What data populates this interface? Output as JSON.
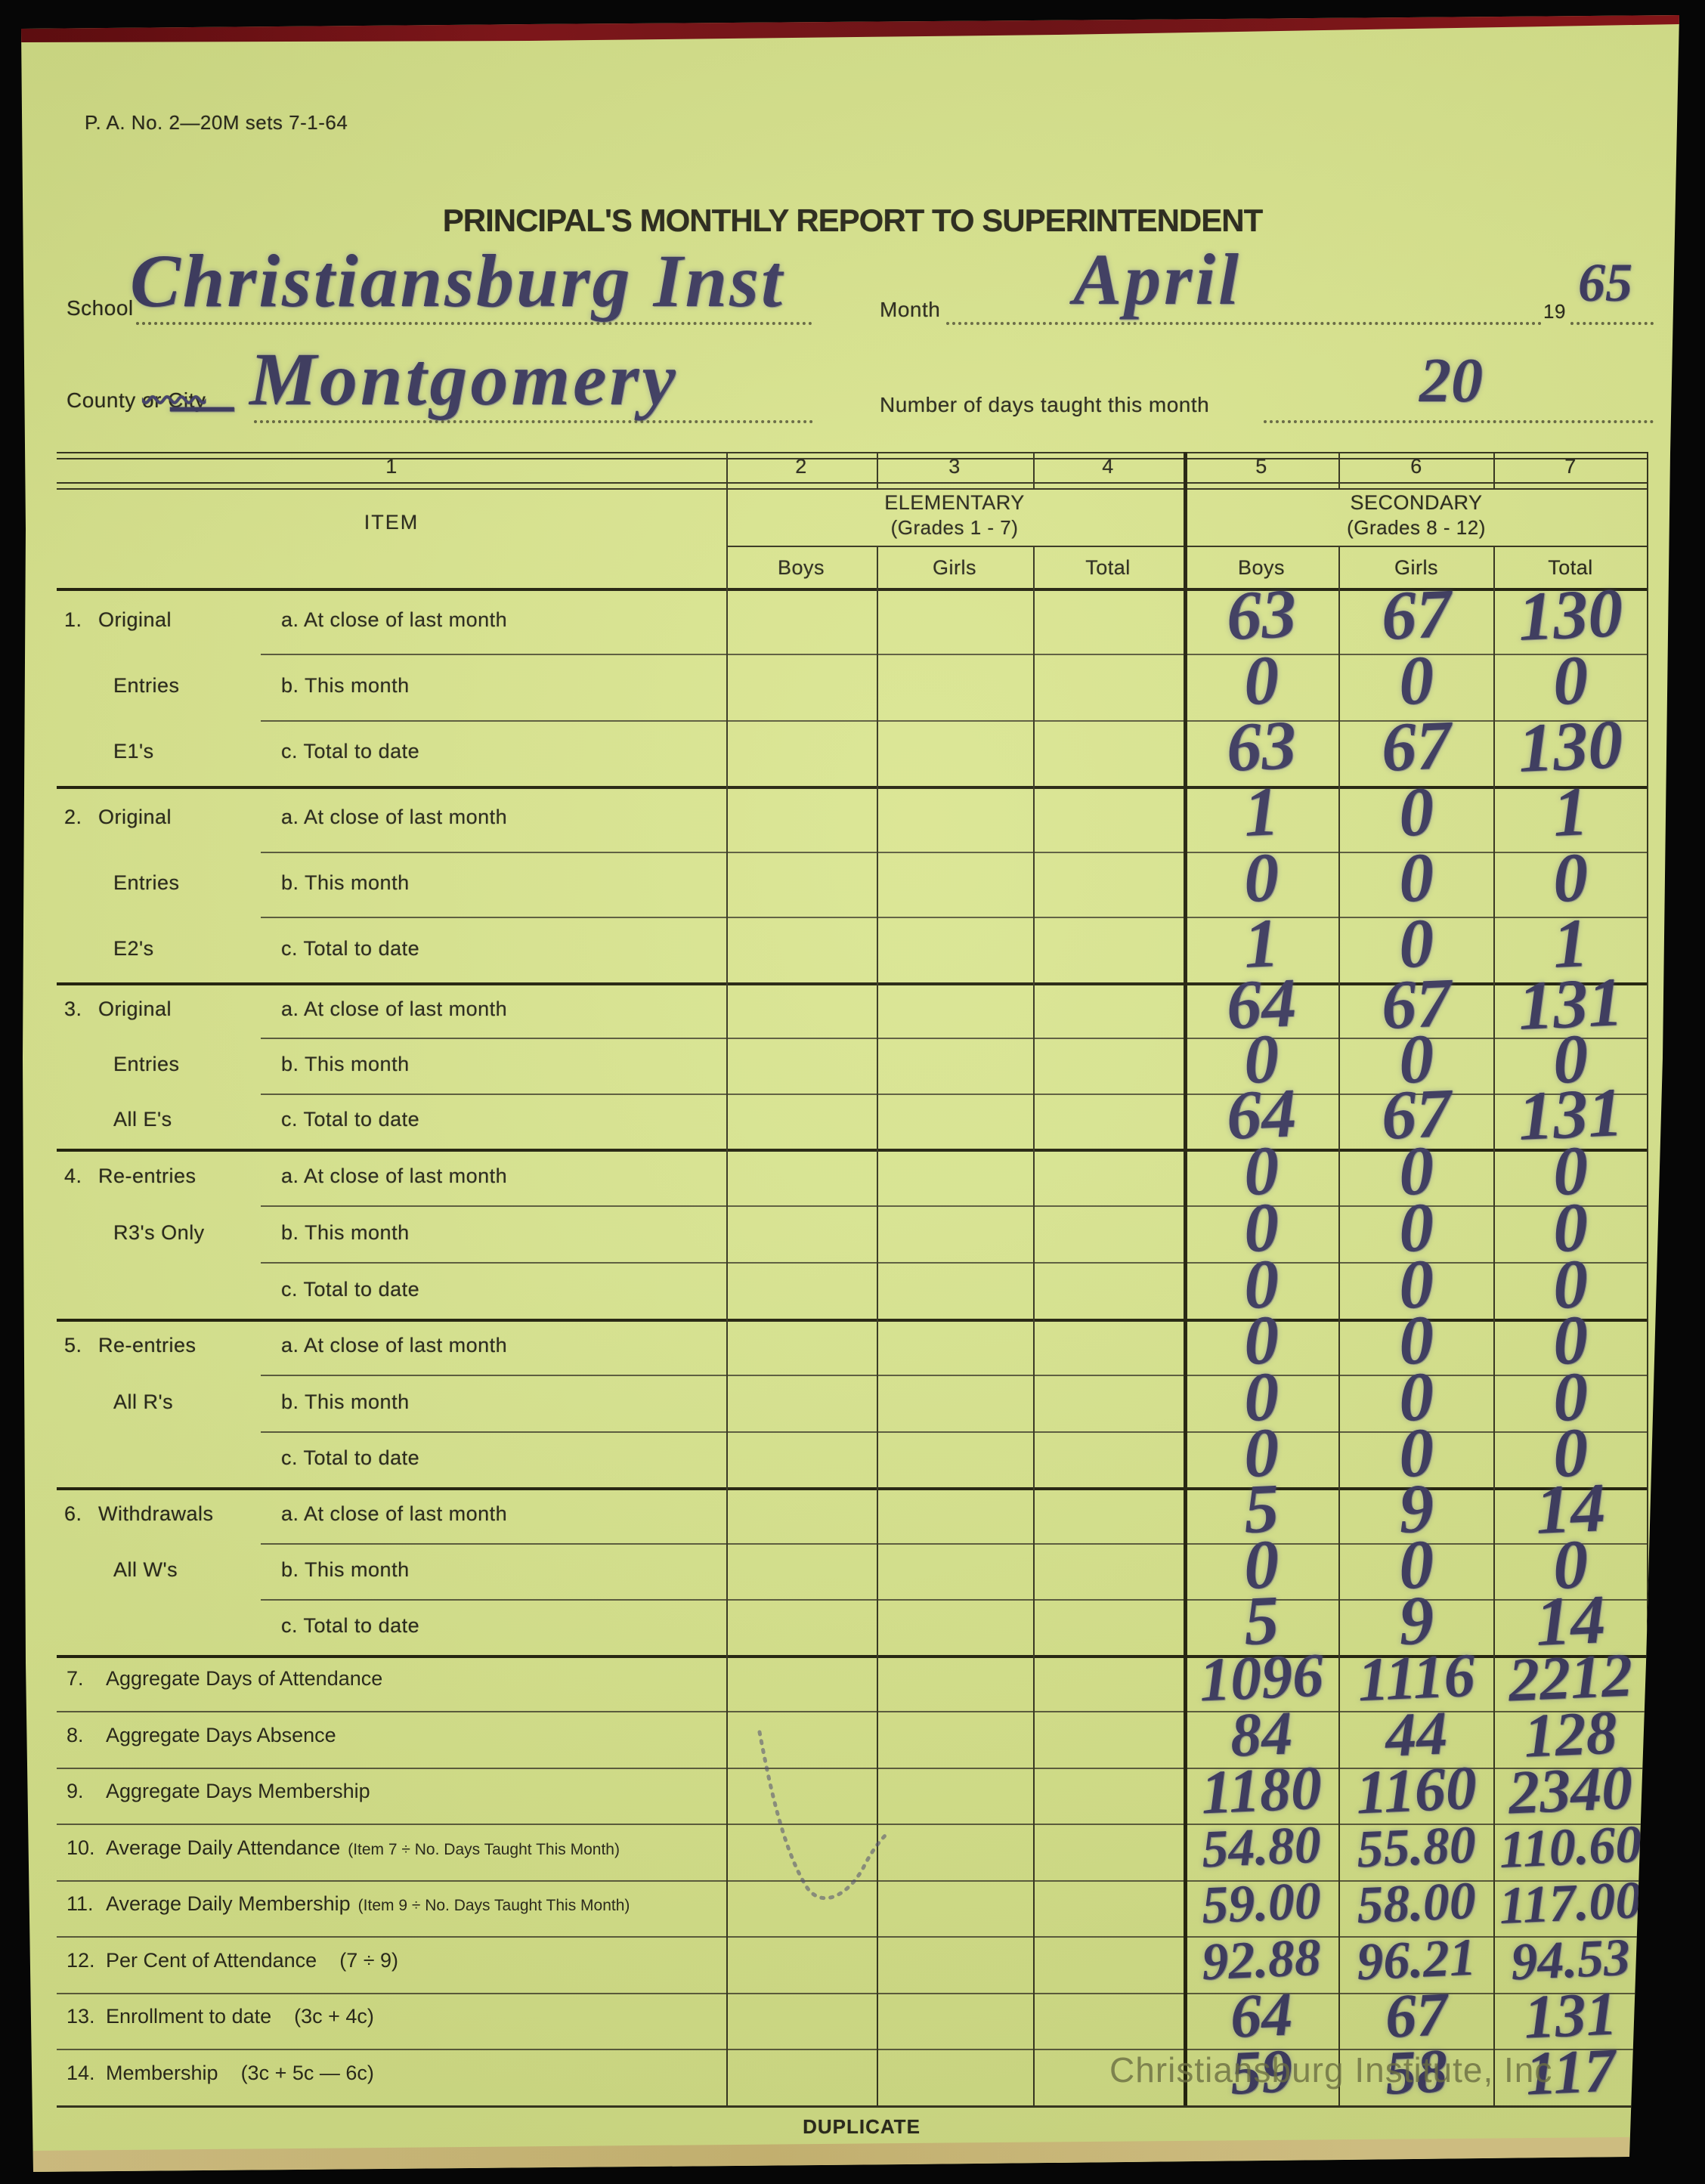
{
  "meta": {
    "form_number": "P. A. No. 2—20M sets 7-1-64",
    "title": "PRINCIPAL'S MONTHLY REPORT TO SUPERINTENDENT",
    "duplicate_label": "DUPLICATE",
    "watermark": "Christiansburg Institute, Inc"
  },
  "fields": {
    "school_label": "School",
    "school_value": "Christiansburg Inst",
    "county_label": "County",
    "county_label_struck": "or City",
    "county_dash": "—",
    "county_value": "Montgomery",
    "month_label": "Month",
    "month_value": "April",
    "year_prefix": "19",
    "year_value": "65",
    "days_label": "Number of days taught this month",
    "days_value": "20"
  },
  "table": {
    "column_numbers": [
      "1",
      "2",
      "3",
      "4",
      "5",
      "6",
      "7"
    ],
    "item_header": "ITEM",
    "elementary_header": "ELEMENTARY",
    "elementary_sub": "(Grades 1 - 7)",
    "secondary_header": "SECONDARY",
    "secondary_sub": "(Grades 8 - 12)",
    "sub_headers": [
      "Boys",
      "Girls",
      "Total"
    ],
    "row_labels": [
      "a. At close of last month",
      "b. This month",
      "c. Total to date"
    ],
    "groups": [
      {
        "num": "1.",
        "side": [
          "Original",
          "Entries",
          "E1's"
        ],
        "values": [
          [
            "63",
            "67",
            "130"
          ],
          [
            "0",
            "0",
            "0"
          ],
          [
            "63",
            "67",
            "130"
          ]
        ]
      },
      {
        "num": "2.",
        "side": [
          "Original",
          "Entries",
          "E2's"
        ],
        "values": [
          [
            "1",
            "0",
            "1"
          ],
          [
            "0",
            "0",
            "0"
          ],
          [
            "1",
            "0",
            "1"
          ]
        ]
      },
      {
        "num": "3.",
        "side": [
          "Original",
          "Entries",
          "All E's"
        ],
        "values": [
          [
            "64",
            "67",
            "131"
          ],
          [
            "0",
            "0",
            "0"
          ],
          [
            "64",
            "67",
            "131"
          ]
        ]
      },
      {
        "num": "4.",
        "side": [
          "Re-entries",
          "R3's Only",
          ""
        ],
        "values": [
          [
            "0",
            "0",
            "0"
          ],
          [
            "0",
            "0",
            "0"
          ],
          [
            "0",
            "0",
            "0"
          ]
        ]
      },
      {
        "num": "5.",
        "side": [
          "Re-entries",
          "All R's",
          ""
        ],
        "values": [
          [
            "0",
            "0",
            "0"
          ],
          [
            "0",
            "0",
            "0"
          ],
          [
            "0",
            "0",
            "0"
          ]
        ]
      },
      {
        "num": "6.",
        "side": [
          "Withdrawals",
          "All W's",
          ""
        ],
        "values": [
          [
            "5",
            "9",
            "14"
          ],
          [
            "0",
            "0",
            "0"
          ],
          [
            "5",
            "9",
            "14"
          ]
        ]
      }
    ],
    "summary": [
      {
        "num": "7.",
        "label": "Aggregate Days of Attendance",
        "paren": "",
        "paren_large": "",
        "values": [
          "1096",
          "1116",
          "2212"
        ]
      },
      {
        "num": "8.",
        "label": "Aggregate Days Absence",
        "paren": "",
        "paren_large": "",
        "values": [
          "84",
          "44",
          "128"
        ]
      },
      {
        "num": "9.",
        "label": "Aggregate Days Membership",
        "paren": "",
        "paren_large": "",
        "values": [
          "1180",
          "1160",
          "2340"
        ]
      },
      {
        "num": "10.",
        "label": "Average Daily Attendance",
        "paren": "(Item 7 ÷ No. Days Taught This Month)",
        "paren_large": "",
        "values": [
          "54.80",
          "55.80",
          "110.60"
        ]
      },
      {
        "num": "11.",
        "label": "Average Daily Membership",
        "paren": "(Item 9 ÷ No. Days Taught This Month)",
        "paren_large": "",
        "values": [
          "59.00",
          "58.00",
          "117.00"
        ]
      },
      {
        "num": "12.",
        "label": "Per Cent of Attendance",
        "paren": "",
        "paren_large": "(7 ÷ 9)",
        "values": [
          "92.88",
          "96.21",
          "94.53"
        ]
      },
      {
        "num": "13.",
        "label": "Enrollment to date",
        "paren": "",
        "paren_large": "(3c + 4c)",
        "values": [
          "64",
          "67",
          "131"
        ]
      },
      {
        "num": "14.",
        "label": "Membership",
        "paren": "",
        "paren_large": "(3c + 5c — 6c)",
        "values": [
          "59",
          "58",
          "117"
        ]
      }
    ]
  }
}
